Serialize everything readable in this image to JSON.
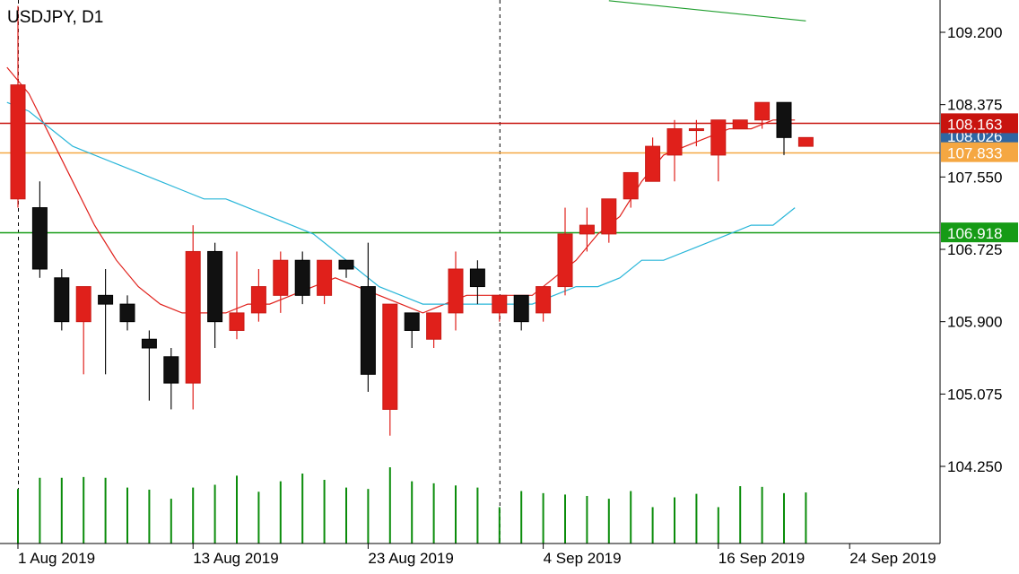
{
  "title": "USDJPY, D1",
  "chart_data": {
    "type": "candlestick",
    "symbol": "USDJPY",
    "timeframe": "D1",
    "ylim": [
      103.3,
      109.6
    ],
    "y_ticks": [
      "109.200",
      "108.375",
      "107.550",
      "106.725",
      "105.900",
      "105.075",
      "104.250"
    ],
    "x_ticks": [
      "1 Aug 2019",
      "13 Aug 2019",
      "23 Aug 2019",
      "4 Sep 2019",
      "16 Sep 2019",
      "24 Sep 2019"
    ],
    "x_tick_bars": [
      0,
      8,
      16,
      24,
      32,
      38
    ],
    "bull_color": "#e0201b",
    "bear_color": "#111111",
    "candles": [
      {
        "o": 107.3,
        "h": 109.5,
        "l": 107.2,
        "c": 108.6
      },
      {
        "o": 107.2,
        "h": 107.5,
        "l": 106.4,
        "c": 106.5
      },
      {
        "o": 106.4,
        "h": 106.5,
        "l": 105.8,
        "c": 105.9
      },
      {
        "o": 105.9,
        "h": 106.3,
        "l": 105.3,
        "c": 106.3
      },
      {
        "o": 106.2,
        "h": 106.5,
        "l": 105.3,
        "c": 106.1
      },
      {
        "o": 106.1,
        "h": 106.2,
        "l": 105.8,
        "c": 105.9
      },
      {
        "o": 105.7,
        "h": 105.8,
        "l": 105.0,
        "c": 105.6
      },
      {
        "o": 105.5,
        "h": 105.6,
        "l": 104.9,
        "c": 105.2
      },
      {
        "o": 105.2,
        "h": 107.0,
        "l": 104.9,
        "c": 106.7
      },
      {
        "o": 106.7,
        "h": 106.8,
        "l": 105.6,
        "c": 105.9
      },
      {
        "o": 105.8,
        "h": 106.7,
        "l": 105.7,
        "c": 106.0
      },
      {
        "o": 106.0,
        "h": 106.5,
        "l": 105.9,
        "c": 106.3
      },
      {
        "o": 106.2,
        "h": 106.7,
        "l": 106.0,
        "c": 106.6
      },
      {
        "o": 106.6,
        "h": 106.7,
        "l": 106.1,
        "c": 106.2
      },
      {
        "o": 106.2,
        "h": 106.6,
        "l": 106.1,
        "c": 106.6
      },
      {
        "o": 106.6,
        "h": 106.6,
        "l": 106.4,
        "c": 106.5
      },
      {
        "o": 106.3,
        "h": 106.8,
        "l": 105.1,
        "c": 105.3
      },
      {
        "o": 104.9,
        "h": 106.1,
        "l": 104.6,
        "c": 106.1
      },
      {
        "o": 106.0,
        "h": 106.0,
        "l": 105.6,
        "c": 105.8
      },
      {
        "o": 105.7,
        "h": 106.0,
        "l": 105.6,
        "c": 106.0
      },
      {
        "o": 106.0,
        "h": 106.7,
        "l": 105.8,
        "c": 106.5
      },
      {
        "o": 106.5,
        "h": 106.6,
        "l": 106.1,
        "c": 106.3
      },
      {
        "o": 106.0,
        "h": 106.2,
        "l": 105.9,
        "c": 106.2
      },
      {
        "o": 106.2,
        "h": 106.2,
        "l": 105.8,
        "c": 105.9
      },
      {
        "o": 106.0,
        "h": 106.3,
        "l": 105.9,
        "c": 106.3
      },
      {
        "o": 106.3,
        "h": 107.2,
        "l": 106.2,
        "c": 106.9
      },
      {
        "o": 106.9,
        "h": 107.2,
        "l": 106.7,
        "c": 107.0
      },
      {
        "o": 106.9,
        "h": 107.3,
        "l": 106.8,
        "c": 107.3
      },
      {
        "o": 107.3,
        "h": 107.6,
        "l": 107.2,
        "c": 107.6
      },
      {
        "o": 107.5,
        "h": 108.0,
        "l": 107.5,
        "c": 107.9
      },
      {
        "o": 107.8,
        "h": 108.2,
        "l": 107.5,
        "c": 108.1
      },
      {
        "o": 108.1,
        "h": 108.2,
        "l": 107.9,
        "c": 108.1
      },
      {
        "o": 107.8,
        "h": 108.2,
        "l": 107.5,
        "c": 108.2
      },
      {
        "o": 108.1,
        "h": 108.2,
        "l": 108.1,
        "c": 108.2
      },
      {
        "o": 108.2,
        "h": 108.4,
        "l": 108.1,
        "c": 108.4
      },
      {
        "o": 108.4,
        "h": 108.4,
        "l": 107.8,
        "c": 108.0
      },
      {
        "o": 107.9,
        "h": 108.0,
        "l": 107.9,
        "c": 108.0
      }
    ],
    "volumes": [
      0.78,
      0.94,
      0.94,
      0.95,
      0.94,
      0.8,
      0.77,
      0.64,
      0.8,
      0.84,
      0.97,
      0.74,
      0.89,
      1.0,
      0.91,
      0.8,
      0.78,
      1.09,
      0.89,
      0.86,
      0.83,
      0.8,
      0.52,
      0.75,
      0.72,
      0.7,
      0.68,
      0.64,
      0.75,
      0.52,
      0.66,
      0.71,
      0.52,
      0.82,
      0.81,
      0.72,
      0.73
    ],
    "moving_averages": [
      {
        "color": "#e0201b",
        "values": [
          108.8,
          108.5,
          108.0,
          107.5,
          107.0,
          106.6,
          106.3,
          106.1,
          106.0,
          106.0,
          106.0,
          106.1,
          106.1,
          106.2,
          106.3,
          106.4,
          106.3,
          106.2,
          106.1,
          106.0,
          106.1,
          106.2,
          106.2,
          106.2,
          106.2,
          106.4,
          106.6,
          106.9,
          107.1,
          107.5,
          107.8,
          107.9,
          108.0,
          108.1,
          108.1,
          108.2,
          108.2
        ]
      },
      {
        "color": "#29b6d9",
        "values": [
          108.4,
          108.3,
          108.1,
          107.9,
          107.8,
          107.7,
          107.6,
          107.5,
          107.4,
          107.3,
          107.3,
          107.2,
          107.1,
          107.0,
          106.9,
          106.7,
          106.5,
          106.3,
          106.2,
          106.1,
          106.1,
          106.1,
          106.1,
          106.1,
          106.1,
          106.2,
          106.3,
          106.3,
          106.4,
          106.6,
          106.6,
          106.7,
          106.8,
          106.9,
          107.0,
          107.0,
          107.2
        ]
      }
    ],
    "trend_line": {
      "color": "#1f9e2e",
      "from": {
        "bar": 27,
        "price": 109.56
      },
      "to": {
        "bar": 36,
        "price": 109.33
      }
    },
    "horizontal_lines": [
      {
        "price": 108.163,
        "label": "108.163",
        "color": "#c8140f",
        "label_bg": "#c8140f"
      },
      {
        "price": 107.833,
        "label": "107.833",
        "color": "#f5a742",
        "label_bg": "#f5a742"
      },
      {
        "price": 106.918,
        "label": "106.918",
        "color": "#169b16",
        "label_bg": "#169b16"
      }
    ],
    "current_price": {
      "price": 108.026,
      "label": "108.026",
      "label_bg": "#2f66a3"
    },
    "vertical_separators": [
      0,
      22
    ],
    "volume_color": "#0a8c0a",
    "grid": false
  }
}
